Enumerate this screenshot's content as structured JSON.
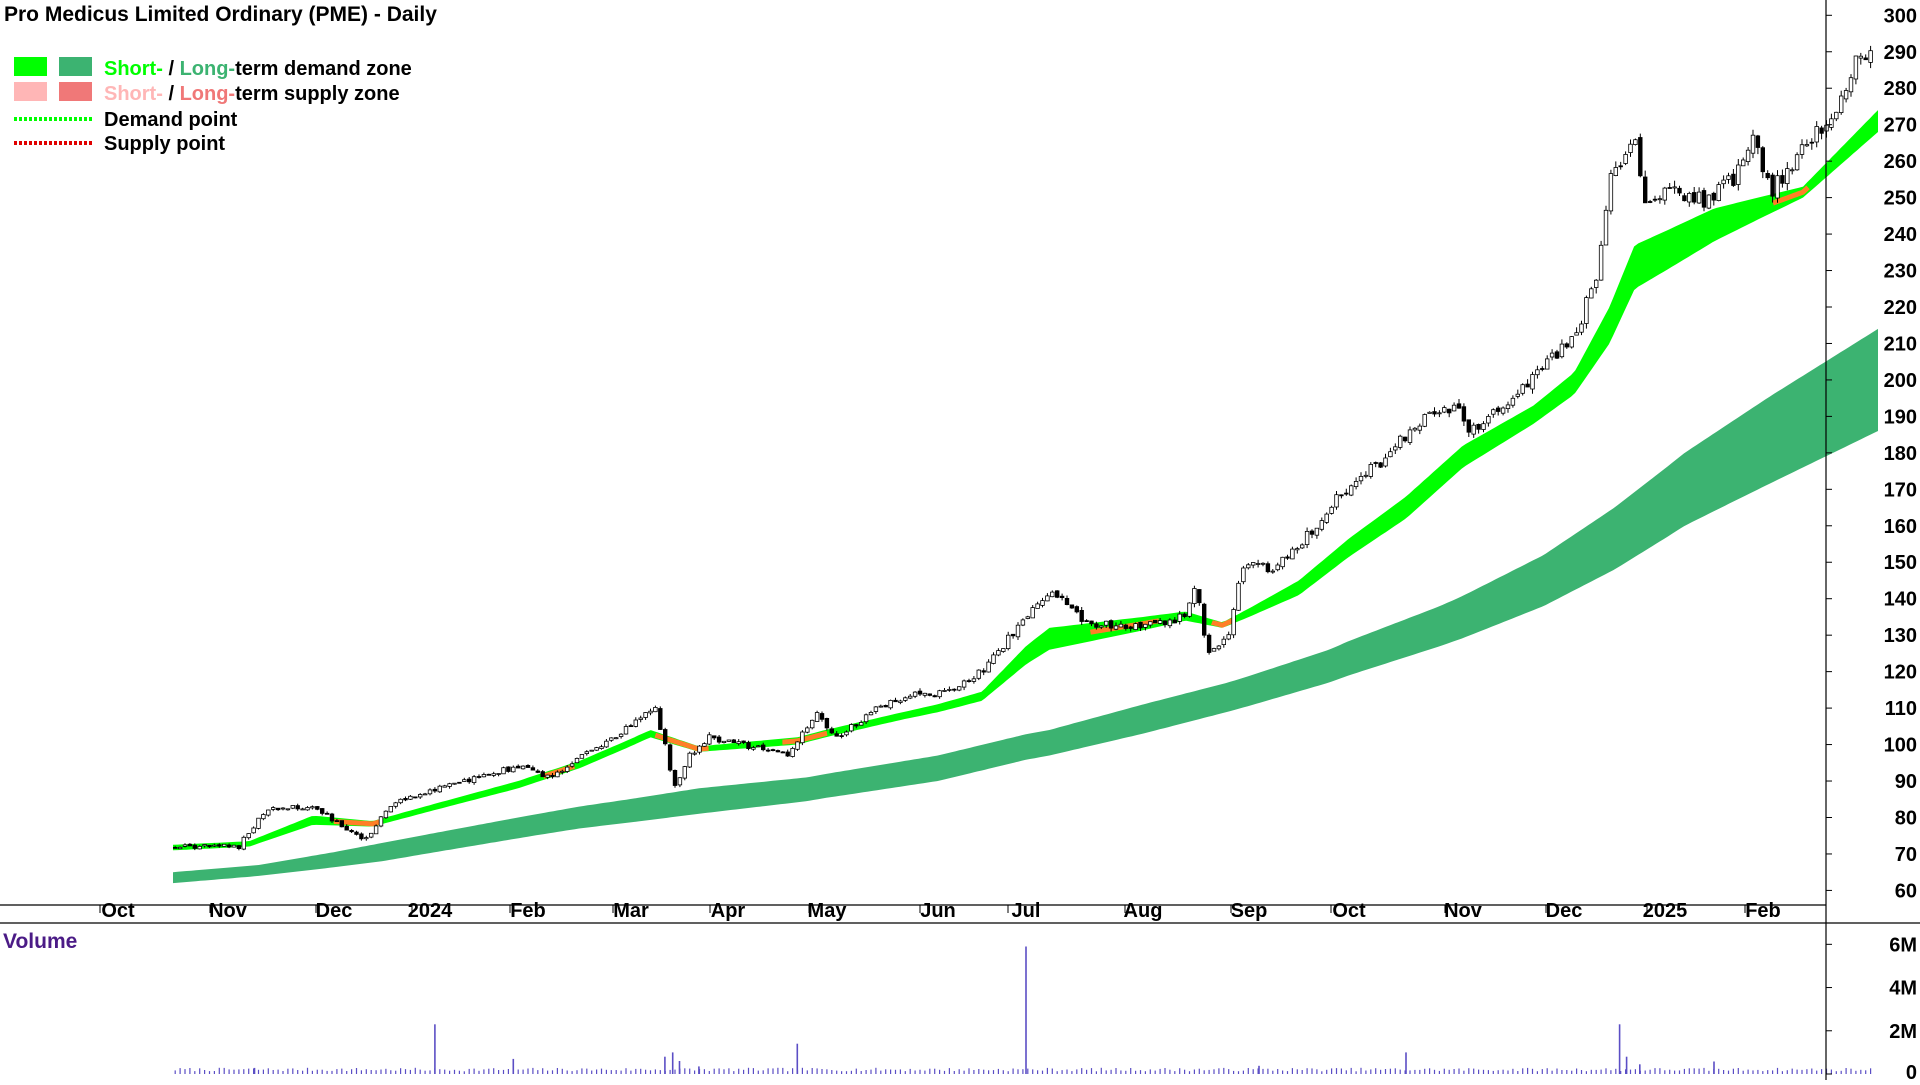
{
  "title": "Pro Medicus Limited Ordinary (PME) - Daily",
  "legend": {
    "demand": {
      "short": "Short-",
      "sep": " / ",
      "long": "Long-",
      "rest": "term demand zone"
    },
    "supply": {
      "short": "Short-",
      "sep": " / ",
      "long": "Long-",
      "rest": "term supply zone"
    },
    "demand_point": "Demand point",
    "supply_point": "Supply point"
  },
  "colors": {
    "short_demand": "#00ff00",
    "long_demand": "#3cb371",
    "short_supply": "#ffb6b6",
    "long_supply": "#f07878",
    "supply_line": "#ff7f27",
    "volume": "#5b4ec5",
    "volume_label": "#4b1b86"
  },
  "volume_label": "Volume",
  "chart_data": [
    {
      "type": "candlestick",
      "title": "Pro Medicus Limited Ordinary (PME) - Daily",
      "x_tick_labels": [
        "Oct",
        "Nov",
        "Dec",
        "2024",
        "Feb",
        "Mar",
        "Apr",
        "May",
        "Jun",
        "Jul",
        "Aug",
        "Sep",
        "Oct",
        "Nov",
        "Dec",
        "2025",
        "Feb"
      ],
      "y_ticks": [
        60,
        70,
        80,
        90,
        100,
        110,
        120,
        130,
        140,
        150,
        160,
        170,
        180,
        190,
        200,
        210,
        220,
        230,
        240,
        250,
        260,
        270,
        280,
        290,
        300
      ],
      "ylim": [
        56,
        302
      ],
      "y_axis_side": "right",
      "grid": false,
      "legend_position": "top-left",
      "price_anchors": [
        {
          "m": 0.0,
          "p": 72
        },
        {
          "m": 0.6,
          "p": 72
        },
        {
          "m": 0.85,
          "p": 82
        },
        {
          "m": 1.3,
          "p": 83
        },
        {
          "m": 1.6,
          "p": 77
        },
        {
          "m": 1.85,
          "p": 74
        },
        {
          "m": 2.1,
          "p": 84
        },
        {
          "m": 2.6,
          "p": 88
        },
        {
          "m": 3.4,
          "p": 94
        },
        {
          "m": 3.7,
          "p": 91
        },
        {
          "m": 4.2,
          "p": 100
        },
        {
          "m": 4.45,
          "p": 104
        },
        {
          "m": 4.6,
          "p": 108
        },
        {
          "m": 4.75,
          "p": 110
        },
        {
          "m": 4.85,
          "p": 100
        },
        {
          "m": 4.95,
          "p": 88
        },
        {
          "m": 5.1,
          "p": 97
        },
        {
          "m": 5.3,
          "p": 102
        },
        {
          "m": 5.8,
          "p": 99
        },
        {
          "m": 6.1,
          "p": 97
        },
        {
          "m": 6.4,
          "p": 108
        },
        {
          "m": 6.6,
          "p": 102
        },
        {
          "m": 6.9,
          "p": 109
        },
        {
          "m": 7.3,
          "p": 114
        },
        {
          "m": 7.6,
          "p": 114
        },
        {
          "m": 8.0,
          "p": 120
        },
        {
          "m": 8.5,
          "p": 135
        },
        {
          "m": 8.75,
          "p": 142
        },
        {
          "m": 8.9,
          "p": 136
        },
        {
          "m": 9.1,
          "p": 133
        },
        {
          "m": 9.6,
          "p": 133
        },
        {
          "m": 9.9,
          "p": 135
        },
        {
          "m": 10.0,
          "p": 145
        },
        {
          "m": 10.1,
          "p": 125
        },
        {
          "m": 10.3,
          "p": 130
        },
        {
          "m": 10.45,
          "p": 150
        },
        {
          "m": 10.75,
          "p": 148
        },
        {
          "m": 11.1,
          "p": 158
        },
        {
          "m": 11.4,
          "p": 168
        },
        {
          "m": 11.8,
          "p": 178
        },
        {
          "m": 12.1,
          "p": 188
        },
        {
          "m": 12.45,
          "p": 193
        },
        {
          "m": 12.55,
          "p": 186
        },
        {
          "m": 12.9,
          "p": 193
        },
        {
          "m": 13.3,
          "p": 203
        },
        {
          "m": 13.65,
          "p": 215
        },
        {
          "m": 13.85,
          "p": 232
        },
        {
          "m": 13.95,
          "p": 255
        },
        {
          "m": 14.2,
          "p": 268
        },
        {
          "m": 14.3,
          "p": 248
        },
        {
          "m": 14.6,
          "p": 252
        },
        {
          "m": 14.9,
          "p": 249
        },
        {
          "m": 15.2,
          "p": 255
        },
        {
          "m": 15.4,
          "p": 265
        },
        {
          "m": 15.6,
          "p": 252
        },
        {
          "m": 15.85,
          "p": 262
        },
        {
          "m": 16.2,
          "p": 272
        },
        {
          "m": 16.45,
          "p": 288
        },
        {
          "m": 16.65,
          "p": 288
        }
      ],
      "short_term_zone": [
        {
          "m": 0.0,
          "lo": 71,
          "hi": 72.5
        },
        {
          "m": 0.7,
          "lo": 72,
          "hi": 73.5
        },
        {
          "m": 1.3,
          "lo": 78,
          "hi": 80.5
        },
        {
          "m": 1.9,
          "lo": 77.5,
          "hi": 79
        },
        {
          "m": 3.4,
          "lo": 88,
          "hi": 90
        },
        {
          "m": 4.0,
          "lo": 93.5,
          "hi": 95.5
        },
        {
          "m": 4.7,
          "lo": 102,
          "hi": 104
        },
        {
          "m": 5.2,
          "lo": 98,
          "hi": 99.5
        },
        {
          "m": 6.2,
          "lo": 100,
          "hi": 102
        },
        {
          "m": 7.2,
          "lo": 107,
          "hi": 109
        },
        {
          "m": 8.0,
          "lo": 112,
          "hi": 114.5
        },
        {
          "m": 8.7,
          "lo": 126,
          "hi": 132
        },
        {
          "m": 9.9,
          "lo": 134,
          "hi": 136.5
        },
        {
          "m": 10.25,
          "lo": 132,
          "hi": 133.5
        },
        {
          "m": 11.0,
          "lo": 141,
          "hi": 145
        },
        {
          "m": 12.0,
          "lo": 162,
          "hi": 168
        },
        {
          "m": 12.5,
          "lo": 176,
          "hi": 182
        },
        {
          "m": 13.2,
          "lo": 188,
          "hi": 193
        },
        {
          "m": 13.6,
          "lo": 196,
          "hi": 202
        },
        {
          "m": 13.95,
          "lo": 210,
          "hi": 220
        },
        {
          "m": 14.2,
          "lo": 225,
          "hi": 237
        },
        {
          "m": 15.0,
          "lo": 238,
          "hi": 247
        },
        {
          "m": 15.9,
          "lo": 250,
          "hi": 253
        },
        {
          "m": 16.65,
          "lo": 268,
          "hi": 274
        }
      ],
      "long_term_zone": [
        {
          "m": 0.0,
          "lo": 62,
          "hi": 65
        },
        {
          "m": 0.8,
          "lo": 64,
          "hi": 67
        },
        {
          "m": 2.0,
          "lo": 68,
          "hi": 73
        },
        {
          "m": 4.0,
          "lo": 77,
          "hi": 83
        },
        {
          "m": 5.2,
          "lo": 81,
          "hi": 88
        },
        {
          "m": 6.3,
          "lo": 84.5,
          "hi": 91
        },
        {
          "m": 7.5,
          "lo": 90,
          "hi": 97
        },
        {
          "m": 8.7,
          "lo": 97,
          "hi": 104
        },
        {
          "m": 9.5,
          "lo": 103,
          "hi": 111
        },
        {
          "m": 10.3,
          "lo": 109,
          "hi": 117
        },
        {
          "m": 11.3,
          "lo": 117,
          "hi": 126
        },
        {
          "m": 12.3,
          "lo": 127,
          "hi": 138
        },
        {
          "m": 13.3,
          "lo": 138,
          "hi": 152
        },
        {
          "m": 14.0,
          "lo": 148,
          "hi": 165
        },
        {
          "m": 14.7,
          "lo": 160,
          "hi": 180
        },
        {
          "m": 15.6,
          "lo": 172,
          "hi": 196
        },
        {
          "m": 16.65,
          "lo": 186,
          "hi": 214
        }
      ],
      "supply_segments": [
        [
          1.5,
          2.0
        ],
        [
          3.65,
          3.95
        ],
        [
          4.75,
          5.3
        ],
        [
          6.05,
          6.5
        ],
        [
          9.05,
          9.65
        ],
        [
          10.15,
          10.35
        ],
        [
          15.6,
          15.95
        ]
      ]
    },
    {
      "type": "bar",
      "title": "Volume",
      "y_ticks": [
        {
          "v": 0,
          "label": "0"
        },
        {
          "v": 2000000,
          "label": "2M"
        },
        {
          "v": 4000000,
          "label": "4M"
        },
        {
          "v": 6000000,
          "label": "6M"
        }
      ],
      "ylim": [
        0,
        6200000
      ],
      "y_axis_side": "right",
      "baseline_volume": 180000,
      "spikes": [
        {
          "m": 0.75,
          "v": 280000
        },
        {
          "m": 2.55,
          "v": 2300000
        },
        {
          "m": 3.35,
          "v": 700000
        },
        {
          "m": 4.85,
          "v": 800000
        },
        {
          "m": 4.93,
          "v": 1000000
        },
        {
          "m": 5.0,
          "v": 600000
        },
        {
          "m": 5.2,
          "v": 350000
        },
        {
          "m": 6.2,
          "v": 1400000
        },
        {
          "m": 8.5,
          "v": 5900000
        },
        {
          "m": 10.6,
          "v": 380000
        },
        {
          "m": 12.0,
          "v": 1000000
        },
        {
          "m": 14.05,
          "v": 2300000
        },
        {
          "m": 14.12,
          "v": 800000
        },
        {
          "m": 14.25,
          "v": 450000
        },
        {
          "m": 15.0,
          "v": 580000
        }
      ]
    }
  ]
}
